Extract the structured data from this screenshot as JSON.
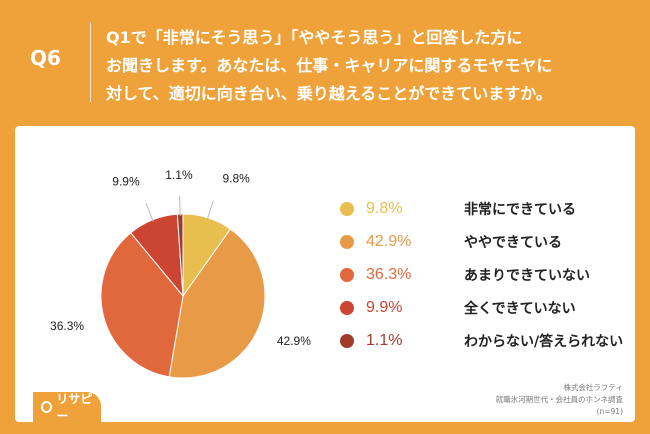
{
  "header": {
    "question_number": "Q6",
    "question_lines": [
      "Q1で「非常にそう思う」「ややそう思う」と回答した方に",
      "お聞きします。あなたは、仕事・キャリアに関するモヤモヤに",
      "対して、適切に向き合い、乗り越えることができていますか。"
    ]
  },
  "chart_data": {
    "type": "pie",
    "start_angle_deg": 0,
    "direction": "clockwise",
    "slices": [
      {
        "label": "非常にできている",
        "value": 9.8,
        "display": "9.8%",
        "color": "#E8BE4E"
      },
      {
        "label": "ややできている",
        "value": 42.9,
        "display": "42.9%",
        "color": "#E89A46"
      },
      {
        "label": "あまりできていない",
        "value": 36.3,
        "display": "36.3%",
        "color": "#E0683C"
      },
      {
        "label": "全くできていない",
        "value": 9.9,
        "display": "9.9%",
        "color": "#CB4532"
      },
      {
        "label": "わからない/答えられない",
        "value": 1.1,
        "display": "1.1%",
        "color": "#A23A2A"
      }
    ],
    "legend_placement": "right"
  },
  "source": {
    "company": "株式会社ラフティ",
    "survey": "就職氷河期世代・会社員のホンネ調査",
    "n": "(n=91)"
  },
  "logo": {
    "text": "リサピー"
  }
}
